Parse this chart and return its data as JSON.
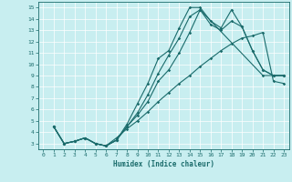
{
  "xlabel": "Humidex (Indice chaleur)",
  "xlim": [
    -0.5,
    23.5
  ],
  "ylim": [
    2.5,
    15.5
  ],
  "xticks": [
    0,
    1,
    2,
    3,
    4,
    5,
    6,
    7,
    8,
    9,
    10,
    11,
    12,
    13,
    14,
    15,
    16,
    17,
    18,
    19,
    20,
    21,
    22,
    23
  ],
  "yticks": [
    3,
    4,
    5,
    6,
    7,
    8,
    9,
    10,
    11,
    12,
    13,
    14,
    15
  ],
  "bg_color": "#c8eef0",
  "line_color": "#1a6b6b",
  "lines": [
    {
      "x": [
        1,
        2,
        3,
        4,
        5,
        6,
        7,
        8,
        9,
        10,
        11,
        12,
        13,
        14,
        15,
        16,
        17,
        18,
        19,
        20,
        21,
        22,
        23
      ],
      "y": [
        4.5,
        3.0,
        3.2,
        3.5,
        3.0,
        2.8,
        3.3,
        4.7,
        6.5,
        8.3,
        10.5,
        11.2,
        13.2,
        15.0,
        15.0,
        13.8,
        13.2,
        14.8,
        13.3,
        11.2,
        9.5,
        9.0,
        9.0
      ]
    },
    {
      "x": [
        1,
        2,
        3,
        4,
        5,
        6,
        7,
        8,
        9,
        10,
        11,
        12,
        13,
        14,
        15,
        16,
        17,
        18,
        19,
        20,
        21,
        22,
        23
      ],
      "y": [
        4.5,
        3.0,
        3.2,
        3.5,
        3.0,
        2.8,
        3.3,
        4.5,
        5.7,
        7.3,
        9.2,
        10.8,
        12.3,
        14.2,
        14.8,
        13.5,
        13.0,
        13.8,
        13.3,
        11.2,
        9.5,
        9.0,
        9.0
      ]
    },
    {
      "x": [
        1,
        2,
        3,
        4,
        5,
        6,
        7,
        8,
        9,
        10,
        11,
        12,
        13,
        14,
        15,
        21,
        22,
        23
      ],
      "y": [
        4.5,
        3.0,
        3.2,
        3.5,
        3.0,
        2.8,
        3.3,
        4.5,
        5.5,
        6.7,
        8.5,
        9.5,
        11.0,
        12.8,
        14.8,
        9.0,
        9.0,
        9.0
      ]
    },
    {
      "x": [
        1,
        2,
        3,
        4,
        5,
        6,
        7,
        8,
        9,
        10,
        11,
        12,
        13,
        14,
        15,
        16,
        17,
        18,
        19,
        20,
        21,
        22,
        23
      ],
      "y": [
        4.5,
        3.0,
        3.2,
        3.5,
        3.0,
        2.8,
        3.5,
        4.3,
        5.0,
        5.8,
        6.7,
        7.5,
        8.3,
        9.0,
        9.8,
        10.5,
        11.2,
        11.8,
        12.3,
        12.5,
        12.8,
        8.5,
        8.3
      ]
    }
  ]
}
